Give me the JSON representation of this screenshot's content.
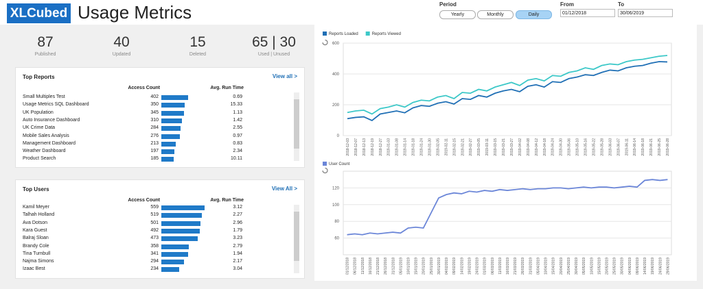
{
  "header": {
    "logo": "XLCubed",
    "title": "Usage Metrics",
    "period_label": "Period",
    "periods": [
      "Yearly",
      "Monthly",
      "Daily"
    ],
    "from_label": "From",
    "from": "01/12/2018",
    "to_label": "To",
    "to": "30/06/2019"
  },
  "kpis": [
    {
      "value": 87,
      "label": "Published"
    },
    {
      "value": 40,
      "label": "Updated"
    },
    {
      "value": 15,
      "label": "Deleted"
    },
    {
      "value": "65 | 30",
      "label": "Used | Unused"
    }
  ],
  "top_reports": {
    "title": "Top Reports",
    "link": "View all >",
    "columns": [
      "Access Count",
      "Avg. Run Time"
    ],
    "rows": [
      [
        "Small Multiples Test",
        402,
        0.69
      ],
      [
        "Usage Metrics SQL Dashboard",
        350,
        15.33
      ],
      [
        "UK Population",
        345,
        1.13
      ],
      [
        "Auto Insurance Dashboard",
        310,
        1.42
      ],
      [
        "UK Crime Data",
        284,
        2.55
      ],
      [
        "Mobile Sales Analysis",
        276,
        0.97
      ],
      [
        "Management Dashboard",
        213,
        0.83
      ],
      [
        "Weather Dashboard",
        197,
        2.34
      ],
      [
        "Product Search",
        185,
        10.11
      ]
    ]
  },
  "top_users": {
    "title": "Top Users",
    "link": "View All >",
    "columns": [
      "Access Count",
      "Avg. Run Time"
    ],
    "rows": [
      [
        "Kamil Meyer",
        559,
        3.12
      ],
      [
        "Talhah Holland",
        519,
        2.27
      ],
      [
        "Ava Dotson",
        501,
        2.96
      ],
      [
        "Kara Guest",
        492,
        1.79
      ],
      [
        "Balraj Sloan",
        473,
        3.23
      ],
      [
        "Brandy Cole",
        358,
        2.79
      ],
      [
        "Tina Turnbull",
        341,
        1.94
      ],
      [
        "Najma Simons",
        294,
        2.17
      ],
      [
        "Izaac Best",
        234,
        3.04
      ]
    ]
  },
  "chart_data": [
    {
      "type": "line",
      "grid": true,
      "ylim": [
        0,
        600
      ],
      "yticks": [
        0,
        200,
        400,
        600
      ],
      "categories": [
        "2018-12-03",
        "2018-12-07",
        "2018-12-13",
        "2018-12-19",
        "2018-12-27",
        "2019-01-03",
        "2019-01-08",
        "2019-01-14",
        "2019-01-18",
        "2019-01-24",
        "2019-01-30",
        "2019-02-05",
        "2019-02-11",
        "2019-02-15",
        "2019-02-21",
        "2019-02-27",
        "2019-03-05",
        "2019-03-11",
        "2019-03-15",
        "2019-03-21",
        "2019-03-27",
        "2019-04-02",
        "2019-04-08",
        "2019-04-12",
        "2019-04-18",
        "2019-04-24",
        "2019-04-30",
        "2019-05-06",
        "2019-05-10",
        "2019-05-16",
        "2019-05-22",
        "2019-05-28",
        "2019-06-03",
        "2019-06-07",
        "2019-06-11",
        "2019-06-14",
        "2019-06-18",
        "2019-06-21",
        "2019-06-25",
        "2019-06-28"
      ],
      "series": [
        {
          "name": "Reports Loaded",
          "color": "#1f6fb5",
          "values": [
            110,
            118,
            122,
            98,
            140,
            150,
            160,
            148,
            180,
            195,
            190,
            210,
            220,
            205,
            240,
            235,
            260,
            250,
            275,
            290,
            300,
            285,
            320,
            330,
            315,
            350,
            345,
            370,
            380,
            395,
            390,
            410,
            425,
            420,
            440,
            450,
            455,
            470,
            480,
            478
          ]
        },
        {
          "name": "Reports Viewed",
          "color": "#3cc8c8",
          "values": [
            150,
            160,
            165,
            140,
            175,
            185,
            200,
            185,
            215,
            230,
            225,
            250,
            260,
            240,
            280,
            275,
            300,
            290,
            315,
            330,
            345,
            325,
            360,
            370,
            355,
            390,
            385,
            410,
            420,
            440,
            430,
            455,
            465,
            460,
            480,
            490,
            495,
            505,
            515,
            520
          ]
        }
      ]
    },
    {
      "type": "line",
      "grid": true,
      "ylim": [
        40,
        140
      ],
      "yticks": [
        60,
        80,
        100,
        120
      ],
      "categories": [
        "01/12/2018",
        "06/12/2018",
        "11/12/2018",
        "16/12/2018",
        "21/12/2018",
        "26/12/2018",
        "31/12/2018",
        "05/01/2019",
        "10/01/2019",
        "15/01/2019",
        "20/01/2019",
        "25/01/2019",
        "30/01/2019",
        "04/02/2019",
        "09/02/2019",
        "14/02/2019",
        "19/02/2019",
        "24/02/2019",
        "01/03/2019",
        "06/03/2019",
        "11/03/2019",
        "16/03/2019",
        "21/03/2019",
        "26/03/2019",
        "31/03/2019",
        "05/04/2019",
        "10/04/2019",
        "15/04/2019",
        "20/04/2019",
        "25/04/2019",
        "30/04/2019",
        "05/05/2019",
        "10/05/2019",
        "15/05/2019",
        "20/05/2019",
        "25/05/2019",
        "30/05/2019",
        "04/06/2019",
        "09/06/2019",
        "14/06/2019",
        "19/06/2019",
        "24/06/2019",
        "29/06/2019"
      ],
      "series": [
        {
          "name": "User Count",
          "color": "#6b86d8",
          "values": [
            64,
            65,
            64,
            66,
            65,
            66,
            67,
            66,
            72,
            73,
            72,
            90,
            108,
            112,
            114,
            113,
            116,
            115,
            117,
            116,
            118,
            117,
            118,
            119,
            118,
            119,
            119,
            120,
            120,
            119,
            120,
            121,
            120,
            121,
            121,
            120,
            121,
            122,
            121,
            129,
            130,
            129,
            130
          ]
        }
      ]
    }
  ]
}
